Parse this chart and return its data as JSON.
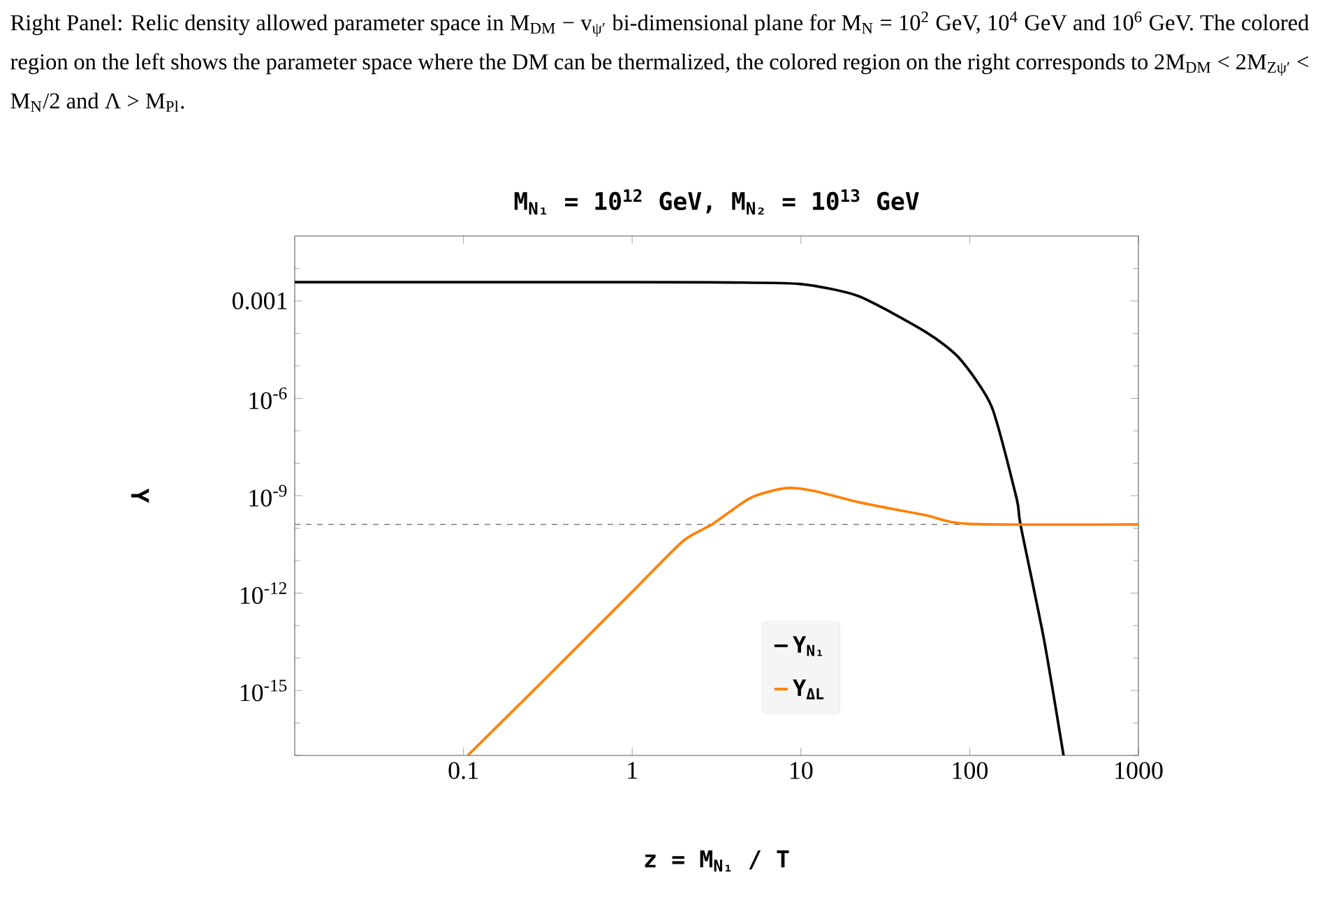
{
  "chart_data": {
    "type": "line",
    "title": "M$_{N₁}$ = 10$^{12}$ GeV, M$_{N₂}$ = 10$^{13}$ GeV",
    "xlabel": "z = M$_{N₁}$ / T",
    "ylabel": "Y",
    "annotations": [
      "Right Panel: Relic density allowed parameter space in M$_{DM}$ − v$_{ψ′}$ bi-dimensional plane for M$_{N}$ = 10$^{2}$ GeV, 10$^{4}$ GeV and 10$^{6}$ GeV. The colored region on the left shows the parameter space where the DM can be thermalized, the colored region on the right corresponds to 2M$_{DM}$ < 2M$_{Zψ′}$ < M$_{N}$/2 and Λ > M$_{Pl}$."
    ],
    "log": "xy",
    "xlim": [
      0.01,
      1000
    ],
    "ylim": [
      1e-17,
      0.1
    ],
    "xticks": [
      0.1,
      1,
      10,
      100,
      1000
    ],
    "yticks": [
      0.001,
      {
        "value": 1e-06,
        "label": "10$^{-6}$"
      },
      {
        "value": 1e-09,
        "label": "10$^{-9}$"
      },
      {
        "value": 1e-12,
        "label": "10$^{-12}$"
      },
      {
        "value": 1e-15,
        "label": "10$^{-15}$"
      }
    ],
    "legend": "bottom",
    "marker": "none",
    "line_style": "solid",
    "ref_lines": [
      {
        "axis": "y",
        "value": 1.3e-10,
        "color": "#808080",
        "line_style": "dashed"
      }
    ],
    "series": [
      {
        "name": "Y$_{N₁}$",
        "color": "#000000",
        "x": [
          0.01,
          1,
          3.8,
          10,
          22,
          55,
          87,
          135,
          190,
          200,
          275,
          360
        ],
        "values": [
          0.0038,
          0.0038,
          0.0037,
          0.0033,
          0.0014,
          0.00011,
          1.7e-05,
          5.5e-07,
          8e-10,
          1.3e-10,
          4e-14,
          1e-17
        ]
      },
      {
        "name": "Y$_{ΔL}$",
        "color": "#ff8000",
        "x": [
          0.106,
          0.3,
          1,
          2,
          3,
          5,
          8,
          12,
          22,
          55,
          100,
          1000
        ],
        "values": [
          1e-17,
          2.1e-15,
          1.1e-12,
          4e-11,
          1.35e-10,
          8.5e-10,
          1.7e-09,
          1.4e-09,
          6.3e-10,
          2.5e-10,
          1.35e-10,
          1.3e-10
        ]
      }
    ]
  }
}
